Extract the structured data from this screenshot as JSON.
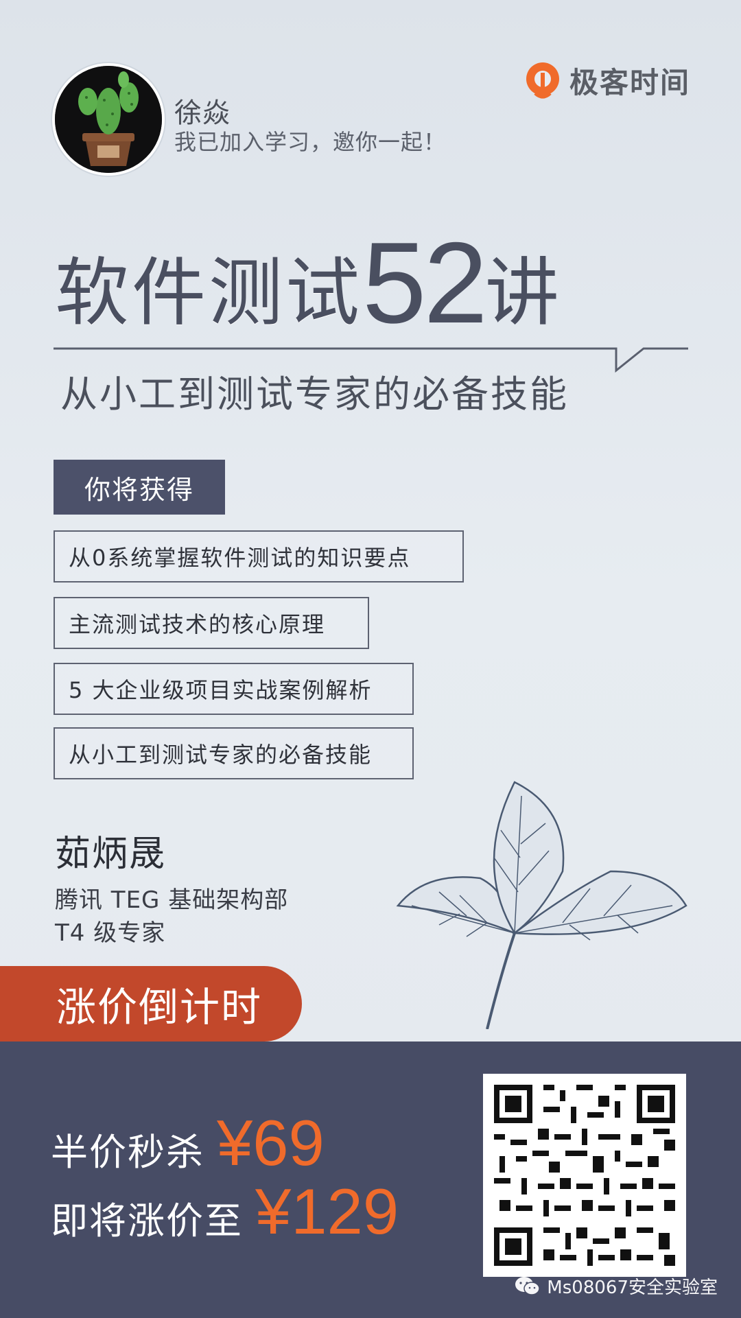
{
  "header": {
    "user_name": "徐焱",
    "invite_text": "我已加入学习，邀你一起！",
    "brand_name": "极客时间",
    "brand_color": "#f06b2b"
  },
  "title": {
    "main": "软件测试",
    "number": "52",
    "suffix": "讲",
    "subtitle": "从小工到测试专家的必备技能"
  },
  "benefits": {
    "header": "你将获得",
    "items": [
      "从0系统掌握软件测试的知识要点",
      "主流测试技术的核心原理",
      "5 大企业级项目实战案例解析",
      "从小工到测试专家的必备技能"
    ]
  },
  "author": {
    "name": "茹炳晟",
    "department": "腾讯 TEG 基础架构部",
    "title": "T4 级专家"
  },
  "promo": {
    "countdown": "涨价倒计时",
    "sale_label": "半价秒杀",
    "sale_price": "¥69",
    "future_label": "即将涨价至",
    "future_price": "¥129",
    "accent_color": "#c2482b",
    "price_color": "#f06b2b",
    "panel_color": "#474c65"
  },
  "watermark": {
    "text": "Ms08067安全实验室",
    "icon": "wechat-icon"
  },
  "icons": {
    "avatar": "cactus-avatar",
    "brand": "geektime-logo-icon",
    "decoration": "leaf-illustration",
    "qr": "qr-code"
  }
}
